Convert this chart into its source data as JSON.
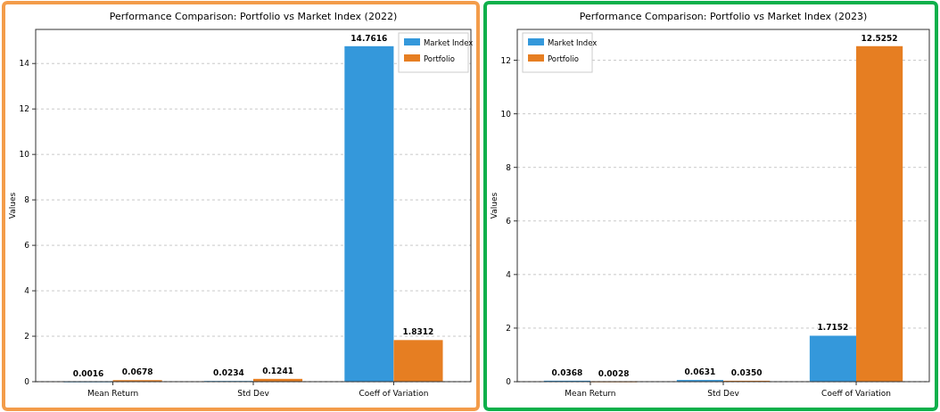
{
  "chart_data": [
    {
      "type": "bar",
      "title": "Performance Comparison: Portfolio vs Market Index (2022)",
      "ylabel": "Values",
      "categories": [
        "Mean Return",
        "Std Dev",
        "Coeff of Variation"
      ],
      "series": [
        {
          "name": "Market Index",
          "color": "#3498db",
          "values": [
            0.0016,
            0.0234,
            14.7616
          ],
          "value_labels": [
            "0.0016",
            "0.0234",
            "14.7616"
          ]
        },
        {
          "name": "Portfolio",
          "color": "#e67e22",
          "values": [
            0.0678,
            0.1241,
            1.8312
          ],
          "value_labels": [
            "0.0678",
            "0.1241",
            "1.8312"
          ]
        }
      ],
      "ylim": [
        0,
        15.5
      ],
      "yticks": [
        0,
        2,
        4,
        6,
        8,
        10,
        12,
        14
      ],
      "grid": "y",
      "legend": "top right"
    },
    {
      "type": "bar",
      "title": "Performance Comparison: Portfolio vs Market Index (2023)",
      "ylabel": "Values",
      "categories": [
        "Mean Return",
        "Std Dev",
        "Coeff of Variation"
      ],
      "series": [
        {
          "name": "Market Index",
          "color": "#3498db",
          "values": [
            0.0368,
            0.0631,
            1.7152
          ],
          "value_labels": [
            "0.0368",
            "0.0631",
            "1.7152"
          ]
        },
        {
          "name": "Portfolio",
          "color": "#e67e22",
          "values": [
            0.0028,
            0.035,
            12.5252
          ],
          "value_labels": [
            "0.0028",
            "0.0350",
            "12.5252"
          ]
        }
      ],
      "ylim": [
        0,
        13.15
      ],
      "yticks": [
        0,
        2,
        4,
        6,
        8,
        10,
        12
      ],
      "grid": "y",
      "legend": "top left"
    }
  ]
}
